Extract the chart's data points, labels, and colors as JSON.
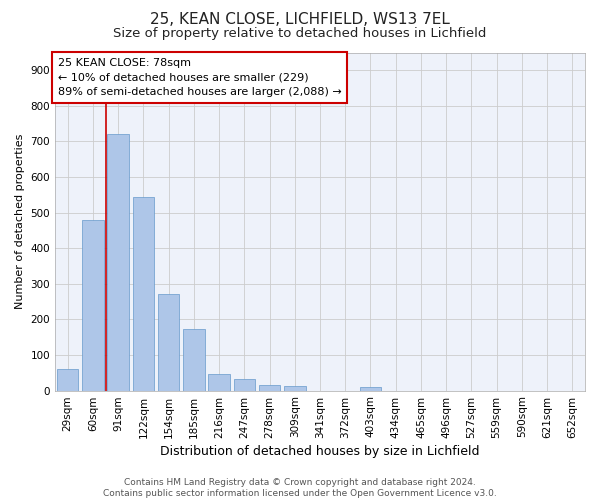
{
  "title1": "25, KEAN CLOSE, LICHFIELD, WS13 7EL",
  "title2": "Size of property relative to detached houses in Lichfield",
  "xlabel": "Distribution of detached houses by size in Lichfield",
  "ylabel": "Number of detached properties",
  "categories": [
    "29sqm",
    "60sqm",
    "91sqm",
    "122sqm",
    "154sqm",
    "185sqm",
    "216sqm",
    "247sqm",
    "278sqm",
    "309sqm",
    "341sqm",
    "372sqm",
    "403sqm",
    "434sqm",
    "465sqm",
    "496sqm",
    "527sqm",
    "559sqm",
    "590sqm",
    "621sqm",
    "652sqm"
  ],
  "values": [
    60,
    480,
    720,
    543,
    270,
    172,
    46,
    32,
    15,
    14,
    0,
    0,
    9,
    0,
    0,
    0,
    0,
    0,
    0,
    0,
    0
  ],
  "bar_color": "#aec6e8",
  "bar_edge_color": "#6699cc",
  "vline_color": "#cc0000",
  "vline_x": 1.5,
  "annotation_text_line1": "25 KEAN CLOSE: 78sqm",
  "annotation_text_line2": "← 10% of detached houses are smaller (229)",
  "annotation_text_line3": "89% of semi-detached houses are larger (2,088) →",
  "ylim": [
    0,
    950
  ],
  "yticks": [
    0,
    100,
    200,
    300,
    400,
    500,
    600,
    700,
    800,
    900
  ],
  "background_color": "#eef2fa",
  "footer_text": "Contains HM Land Registry data © Crown copyright and database right 2024.\nContains public sector information licensed under the Open Government Licence v3.0.",
  "title1_fontsize": 11,
  "title2_fontsize": 9.5,
  "xlabel_fontsize": 9,
  "ylabel_fontsize": 8,
  "tick_fontsize": 7.5,
  "annotation_fontsize": 8,
  "footer_fontsize": 6.5
}
